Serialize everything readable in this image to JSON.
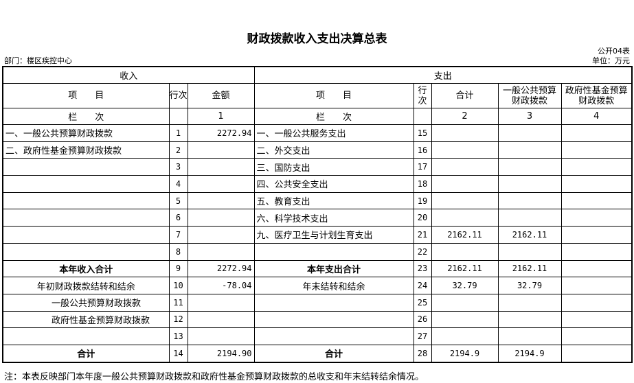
{
  "title": "财政拨款收入支出决算总表",
  "form_code": "公开04表",
  "department": "部门：楼区疾控中心",
  "unit": "单位：万元",
  "headers": {
    "income": "收入",
    "expense": "支出",
    "item": "项　　目",
    "line_no": "行次",
    "amount": "金额",
    "total": "合计",
    "general_budget": "一般公共预算财政拨款",
    "gov_fund": "政府性基金预算财政拨款",
    "column_label": "栏　　次",
    "col1": "1",
    "col2": "2",
    "col3": "3",
    "col4": "4"
  },
  "rows": [
    [
      "一、一般公共预算财政拨款",
      "1",
      "2272.94",
      "一、一般公共服务支出",
      "15",
      "",
      "",
      ""
    ],
    [
      "二、政府性基金预算财政拨款",
      "2",
      "",
      "二、外交支出",
      "16",
      "",
      "",
      ""
    ],
    [
      "",
      "3",
      "",
      "三、国防支出",
      "17",
      "",
      "",
      ""
    ],
    [
      "",
      "4",
      "",
      "四、公共安全支出",
      "18",
      "",
      "",
      ""
    ],
    [
      "",
      "5",
      "",
      "五、教育支出",
      "19",
      "",
      "",
      ""
    ],
    [
      "",
      "6",
      "",
      "六、科学技术支出",
      "20",
      "",
      "",
      ""
    ],
    [
      "",
      "7",
      "",
      "九、医疗卫生与计划生育支出",
      "21",
      "2162.11",
      "2162.11",
      ""
    ],
    [
      "",
      "8",
      "",
      "",
      "22",
      "",
      "",
      ""
    ],
    [
      "本年收入合计",
      "9",
      "2272.94",
      "本年支出合计",
      "23",
      "2162.11",
      "2162.11",
      ""
    ],
    [
      "年初财政拨款结转和结余",
      "10",
      "-78.04",
      "年末结转和结余",
      "24",
      "32.79",
      "32.79",
      ""
    ],
    [
      "一般公共预算财政拨款",
      "11",
      "",
      "",
      "25",
      "",
      "",
      ""
    ],
    [
      "政府性基金预算财政拨款",
      "12",
      "",
      "",
      "26",
      "",
      "",
      ""
    ],
    [
      "",
      "13",
      "",
      "",
      "27",
      "",
      "",
      ""
    ],
    [
      "合计",
      "14",
      "2194.90",
      "合计",
      "28",
      "2194.9",
      "2194.9",
      ""
    ]
  ],
  "note": "注：本表反映部门本年度一般公共预算财政拨款和政府性基金预算财政拨款的总收支和年末结转结余情况。"
}
